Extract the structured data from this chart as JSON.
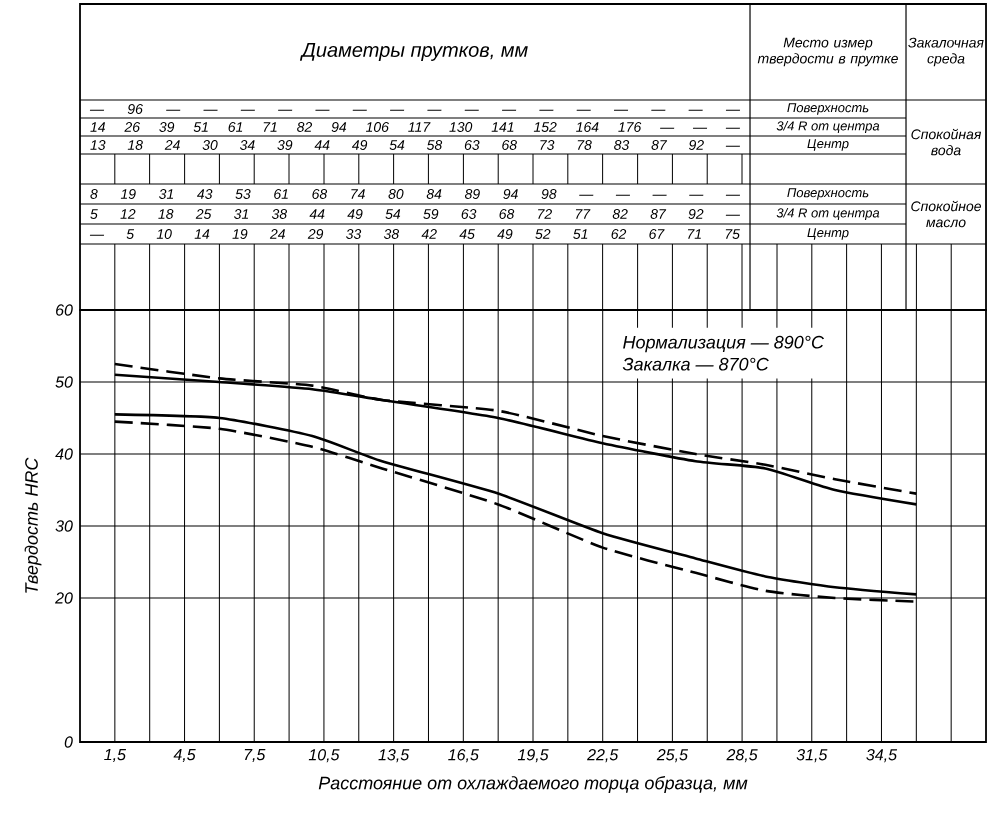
{
  "chart_data": {
    "type": "line",
    "xlabel": "Расстояние от охлаждаемого торца образца, мм",
    "ylabel": "Твердость HRC",
    "xlim": [
      0,
      39
    ],
    "xticks": [
      {
        "value": 1.5,
        "label": "1,5"
      },
      {
        "value": 3,
        "label": null
      },
      {
        "value": 4.5,
        "label": "4,5"
      },
      {
        "value": 6,
        "label": null
      },
      {
        "value": 7.5,
        "label": "7,5"
      },
      {
        "value": 9,
        "label": null
      },
      {
        "value": 10.5,
        "label": "10,5"
      },
      {
        "value": 12,
        "label": null
      },
      {
        "value": 13.5,
        "label": "13,5"
      },
      {
        "value": 15,
        "label": null
      },
      {
        "value": 16.5,
        "label": "16,5"
      },
      {
        "value": 18,
        "label": null
      },
      {
        "value": 19.5,
        "label": "19,5"
      },
      {
        "value": 21,
        "label": null
      },
      {
        "value": 22.5,
        "label": "22,5"
      },
      {
        "value": 24,
        "label": null
      },
      {
        "value": 25.5,
        "label": "25,5"
      },
      {
        "value": 27,
        "label": null
      },
      {
        "value": 28.5,
        "label": "28,5"
      },
      {
        "value": 30,
        "label": null
      },
      {
        "value": 31.5,
        "label": "31,5"
      },
      {
        "value": 33,
        "label": null
      },
      {
        "value": 34.5,
        "label": "34,5"
      },
      {
        "value": 36,
        "label": null
      },
      {
        "value": 37.5,
        "label": null
      }
    ],
    "ylim": [
      0,
      60
    ],
    "yticks": [
      0,
      20,
      30,
      40,
      50,
      60
    ],
    "grid": true,
    "x": [
      1.5,
      6,
      10,
      13,
      18,
      22.5,
      26.5,
      29.5,
      32.5,
      36
    ],
    "series": [
      {
        "color": "#000000",
        "line_style": "dashed",
        "values": [
          52.5,
          50.5,
          49.5,
          47.5,
          46,
          42.5,
          40,
          38.5,
          36.5,
          34.5
        ]
      },
      {
        "color": "#000000",
        "line_style": "solid",
        "values": [
          51,
          50,
          49,
          47.5,
          45,
          41.5,
          39,
          38,
          35,
          33
        ]
      },
      {
        "color": "#000000",
        "line_style": "solid",
        "values": [
          45.5,
          45,
          42.5,
          39,
          34.5,
          29,
          25.5,
          23,
          21.5,
          20.5
        ]
      },
      {
        "color": "#000000",
        "line_style": "dashed",
        "values": [
          44.5,
          43.5,
          41,
          38,
          33,
          27,
          23.5,
          21,
          20,
          19.5
        ]
      }
    ],
    "annotations": [
      "Диаметры прутков, мм",
      "Место измер твердости в прутке",
      "Закалочная среда",
      "— 96 — — — — — — — — — — — — — — — —",
      "14 26 39 51 61 71 82 94 106 117 130 141 152 164 176 — — —",
      "13 18 24 30 34 39 44 49 54 58 63 68 73 78 83 87 92 —",
      "Поверхность",
      "3/4 R от центра",
      "Центр",
      "Спокойная вода",
      "8 19 31 43 53 61 68 74 80 84 89 94 98 — — — — —",
      "5 12 18 25 31 38 44 49 54 59 63 68 72 77 82 87 92 —",
      "— 5 10 14 19 24 29 33 38 42 45 49 52 51 62 67 71 75",
      "Поверхность",
      "3/4 R от центра",
      "Центр",
      "Спокойное масло",
      "Нормализация — 890°C",
      "Закалка — 870°C"
    ]
  }
}
